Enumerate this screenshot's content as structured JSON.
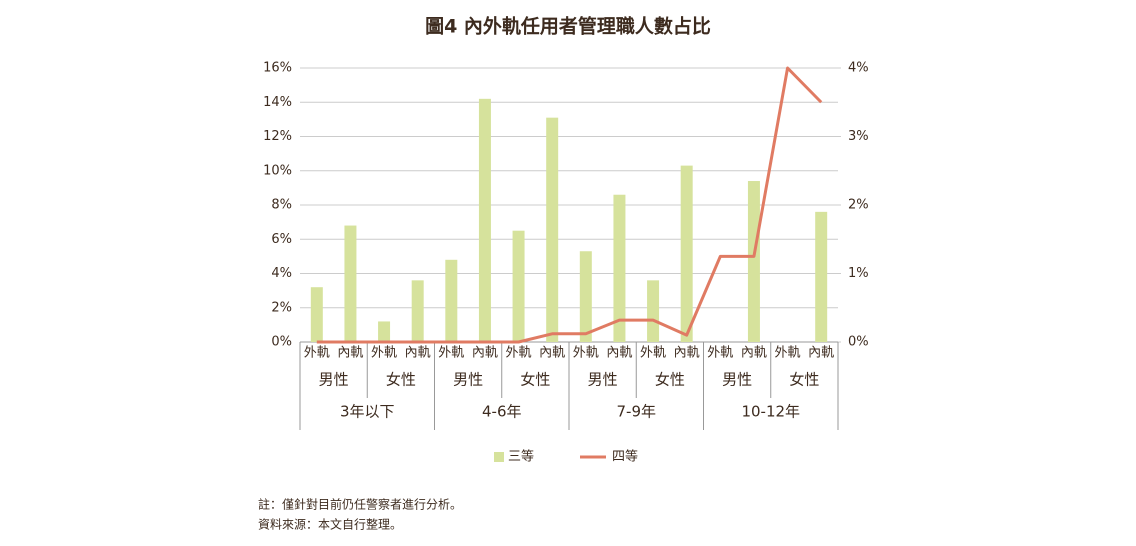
{
  "chart_data": {
    "type": "bar-line",
    "title": "圖4 內外軌任用者管理職人數占比",
    "categories": [
      "外軌",
      "內軌",
      "外軌",
      "內軌",
      "外軌",
      "內軌",
      "外軌",
      "內軌",
      "外軌",
      "內軌",
      "外軌",
      "內軌",
      "外軌",
      "內軌",
      "外軌",
      "內軌"
    ],
    "groups": [
      "男性",
      "女性",
      "男性",
      "女性",
      "男性",
      "女性",
      "男性",
      "女性"
    ],
    "supergroups": [
      "3年以下",
      "4-6年",
      "7-9年",
      "10-12年"
    ],
    "series": [
      {
        "name": "三等",
        "type": "bar",
        "color": "#d6e29c",
        "values": [
          3.2,
          6.8,
          1.2,
          3.6,
          4.8,
          14.2,
          6.5,
          13.1,
          5.3,
          8.6,
          3.6,
          10.3,
          0,
          9.4,
          0,
          7.6
        ]
      },
      {
        "name": "四等",
        "type": "line",
        "axis": "y2",
        "color": "#e07b63",
        "values": [
          0,
          0,
          0,
          0,
          0,
          0,
          0,
          0.12,
          0.12,
          0.32,
          0.32,
          0.1,
          1.25,
          1.25,
          4.0,
          3.5
        ]
      }
    ],
    "ylim": [
      0,
      16
    ],
    "yticks": [
      {
        "value": 0,
        "label": "0%"
      },
      {
        "value": 2,
        "label": "2%"
      },
      {
        "value": 4,
        "label": "4%"
      },
      {
        "value": 6,
        "label": "6%"
      },
      {
        "value": 8,
        "label": "8%"
      },
      {
        "value": 10,
        "label": "10%"
      },
      {
        "value": 12,
        "label": "12%"
      },
      {
        "value": 14,
        "label": "14%"
      },
      {
        "value": 16,
        "label": "16%"
      }
    ],
    "y2lim": [
      0,
      4
    ],
    "y2ticks": [
      {
        "value": 0,
        "label": "0%"
      },
      {
        "value": 1,
        "label": "1%"
      },
      {
        "value": 2,
        "label": "2%"
      },
      {
        "value": 3,
        "label": "3%"
      },
      {
        "value": 4,
        "label": "4%"
      }
    ],
    "grid": true,
    "legend": "bottom",
    "notes": [
      "註：僅針對目前仍任警察者進行分析。",
      "資料來源：本文自行整理。"
    ]
  }
}
